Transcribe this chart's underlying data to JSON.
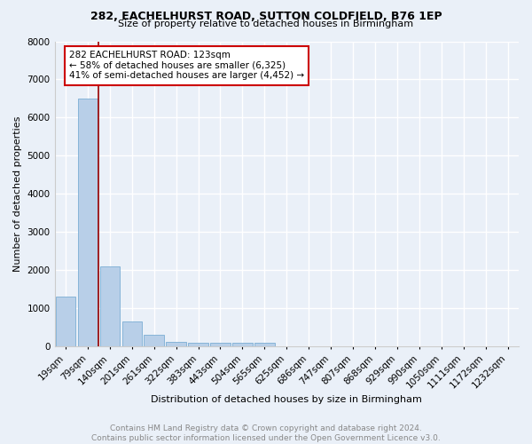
{
  "title1": "282, EACHELHURST ROAD, SUTTON COLDFIELD, B76 1EP",
  "title2": "Size of property relative to detached houses in Birmingham",
  "xlabel": "Distribution of detached houses by size in Birmingham",
  "ylabel": "Number of detached properties",
  "footer1": "Contains HM Land Registry data © Crown copyright and database right 2024.",
  "footer2": "Contains public sector information licensed under the Open Government Licence v3.0.",
  "annotation_line1": "282 EACHELHURST ROAD: 123sqm",
  "annotation_line2": "← 58% of detached houses are smaller (6,325)",
  "annotation_line3": "41% of semi-detached houses are larger (4,452) →",
  "bar_color": "#b8cfe8",
  "bar_edge_color": "#7badd4",
  "background_color": "#eaf0f8",
  "grid_color": "#ffffff",
  "red_line_color": "#990000",
  "annotation_box_edge_color": "#cc0000",
  "annotation_box_face_color": "#ffffff",
  "categories": [
    "19sqm",
    "79sqm",
    "140sqm",
    "201sqm",
    "261sqm",
    "322sqm",
    "383sqm",
    "443sqm",
    "504sqm",
    "565sqm",
    "625sqm",
    "686sqm",
    "747sqm",
    "807sqm",
    "868sqm",
    "929sqm",
    "990sqm",
    "1050sqm",
    "1111sqm",
    "1172sqm",
    "1232sqm"
  ],
  "values": [
    1300,
    6500,
    2100,
    650,
    300,
    130,
    90,
    90,
    90,
    90,
    0,
    0,
    0,
    0,
    0,
    0,
    0,
    0,
    0,
    0,
    0
  ],
  "red_line_x": 1.5,
  "ylim": [
    0,
    8000
  ],
  "yticks": [
    0,
    1000,
    2000,
    3000,
    4000,
    5000,
    6000,
    7000,
    8000
  ],
  "title1_fontsize": 9,
  "title2_fontsize": 8,
  "ylabel_fontsize": 8,
  "xlabel_fontsize": 8,
  "tick_fontsize": 7.5,
  "annotation_fontsize": 7.5,
  "footer_fontsize": 6.5
}
